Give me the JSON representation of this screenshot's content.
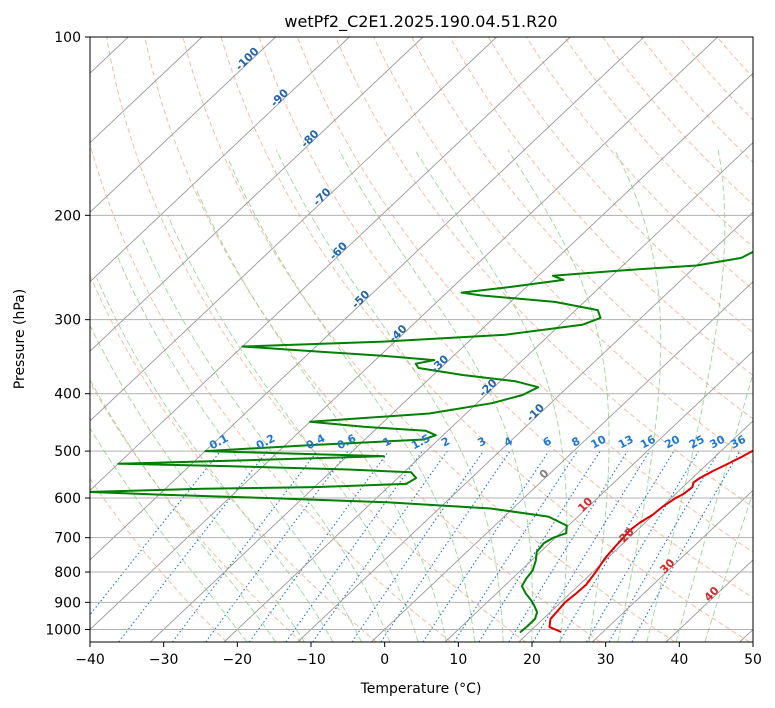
{
  "chart_data": {
    "type": "line",
    "title": "wetPf2_C2E1.2025.190.04.51.R20",
    "xlabel": "Temperature (°C)",
    "ylabel": "Pressure (hPa)",
    "xlim": [
      -40,
      50
    ],
    "ylim": [
      1050,
      100
    ],
    "y_scale": "log",
    "grid": true,
    "x_ticks": [
      "−40",
      "−30",
      "−20",
      "−10",
      "0",
      "10",
      "20",
      "30",
      "40",
      "50"
    ],
    "y_ticks": [
      "100",
      "200",
      "300",
      "400",
      "500",
      "600",
      "700",
      "800",
      "900",
      "1000"
    ],
    "colors": {
      "temperature": "#e00000",
      "dewpoint": "#008000",
      "isotherm": "#999999",
      "dry_adiabat": "#f4a582",
      "moist_adiabat": "#8fcf8f",
      "mixing_ratio": "#1f77d4",
      "isotherm_label_cold": "#2166ac",
      "isotherm_label_warm": "#d62728",
      "zero_label": "#808080"
    },
    "isotherm_labels": [
      "-100",
      "-90",
      "-80",
      "-70",
      "-60",
      "-50",
      "-40",
      "-30",
      "-20",
      "-10",
      "0",
      "10",
      "20",
      "30",
      "40"
    ],
    "mixing_ratio_labels": [
      "0.1",
      "0.2",
      "0.4",
      "0.6",
      "1",
      "1.5",
      "2",
      "3",
      "4",
      "6",
      "8",
      "10",
      "13",
      "16",
      "20",
      "25",
      "30",
      "36"
    ],
    "series": [
      {
        "key": "temperature",
        "points": [
          [
            24.3,
            1010
          ],
          [
            22.0,
            990
          ],
          [
            21.0,
            960
          ],
          [
            20.8,
            930
          ],
          [
            20.6,
            900
          ],
          [
            20.8,
            870
          ],
          [
            20.9,
            840
          ],
          [
            20.4,
            800
          ],
          [
            19.7,
            760
          ],
          [
            19.4,
            730
          ],
          [
            19.2,
            700
          ],
          [
            19.0,
            680
          ],
          [
            19.3,
            660
          ],
          [
            19.9,
            640
          ],
          [
            20.1,
            620
          ],
          [
            20.6,
            600
          ],
          [
            21.1,
            590
          ],
          [
            21.3,
            575
          ],
          [
            20.8,
            565
          ],
          [
            21.0,
            555
          ],
          [
            21.8,
            540
          ],
          [
            22.6,
            528
          ],
          [
            23.6,
            512
          ],
          [
            24.5,
            495
          ],
          [
            24.9,
            482
          ],
          [
            24.5,
            468
          ],
          [
            23.6,
            452
          ],
          [
            22.5,
            436
          ],
          [
            21.2,
            418
          ],
          [
            19.8,
            400
          ],
          [
            17.0,
            375
          ],
          [
            14.8,
            355
          ],
          [
            13.0,
            335
          ],
          [
            11.2,
            315
          ],
          [
            9.6,
            295
          ],
          [
            8.0,
            272
          ],
          [
            6.6,
            252
          ],
          [
            5.2,
            232
          ],
          [
            4.2,
            218
          ],
          [
            3.3,
            203
          ],
          [
            2.6,
            188
          ],
          [
            1.8,
            172
          ],
          [
            1.0,
            155
          ],
          [
            0.3,
            140
          ],
          [
            -0.5,
            128
          ],
          [
            -0.6,
            121
          ],
          [
            -0.3,
            117
          ],
          [
            0.2,
            112
          ],
          [
            0.9,
            106
          ],
          [
            1.4,
            102
          ],
          [
            1.8,
            100
          ]
        ]
      },
      {
        "key": "dewpoint",
        "points": [
          [
            18.8,
            1012
          ],
          [
            18.9,
            990
          ],
          [
            18.9,
            960
          ],
          [
            18.2,
            935
          ],
          [
            16.8,
            910
          ],
          [
            15.5,
            890
          ],
          [
            14.0,
            870
          ],
          [
            12.4,
            845
          ],
          [
            11.9,
            820
          ],
          [
            11.6,
            795
          ],
          [
            10.6,
            765
          ],
          [
            9.5,
            740
          ],
          [
            9.2,
            715
          ],
          [
            9.7,
            700
          ],
          [
            10.8,
            688
          ],
          [
            9.8,
            668
          ],
          [
            6.0,
            645
          ],
          [
            -3.0,
            625
          ],
          [
            -18.0,
            610
          ],
          [
            -35.0,
            600
          ],
          [
            -50.0,
            592
          ],
          [
            -60.0,
            586
          ],
          [
            -45.0,
            579
          ],
          [
            -30.0,
            575
          ],
          [
            -18.0,
            568
          ],
          [
            -17.5,
            555
          ],
          [
            -19.0,
            543
          ],
          [
            -28.0,
            537
          ],
          [
            -45.0,
            530
          ],
          [
            -60.0,
            525
          ],
          [
            -43.0,
            518
          ],
          [
            -25.0,
            510
          ],
          [
            -50.0,
            500
          ],
          [
            -36.0,
            488
          ],
          [
            -22.0,
            478
          ],
          [
            -21.0,
            470
          ],
          [
            -23.0,
            462
          ],
          [
            -32.0,
            455
          ],
          [
            -40.0,
            446
          ],
          [
            -25.0,
            432
          ],
          [
            -18.0,
            415
          ],
          [
            -15.0,
            402
          ],
          [
            -14.0,
            390
          ],
          [
            -18.0,
            381
          ],
          [
            -26.0,
            372
          ],
          [
            -33.0,
            362
          ],
          [
            -34.0,
            356
          ],
          [
            -32.0,
            351
          ],
          [
            -40.0,
            345
          ],
          [
            -50.0,
            339
          ],
          [
            -60.0,
            333
          ],
          [
            -42.0,
            327
          ],
          [
            -26.0,
            318
          ],
          [
            -17.0,
            306
          ],
          [
            -15.5,
            298
          ],
          [
            -17.0,
            289
          ],
          [
            -24.0,
            280
          ],
          [
            -35.0,
            273
          ],
          [
            -38.0,
            270
          ],
          [
            -32.0,
            264
          ],
          [
            -26.0,
            257
          ],
          [
            -28.0,
            253
          ],
          [
            -20.0,
            248
          ],
          [
            -10.0,
            243
          ],
          [
            -5.0,
            236
          ],
          [
            -4.0,
            228
          ],
          [
            -4.0,
            220
          ],
          [
            -5.0,
            210
          ],
          [
            -6.0,
            201
          ],
          [
            -6.8,
            195
          ],
          [
            -6.5,
            190
          ],
          [
            -5.5,
            182
          ],
          [
            -4.5,
            170
          ],
          [
            -3.5,
            158
          ],
          [
            -2.5,
            145
          ],
          [
            -1.5,
            133
          ],
          [
            -0.5,
            122
          ],
          [
            0.5,
            113
          ],
          [
            1.5,
            106
          ],
          [
            2.3,
            100
          ]
        ]
      }
    ]
  }
}
